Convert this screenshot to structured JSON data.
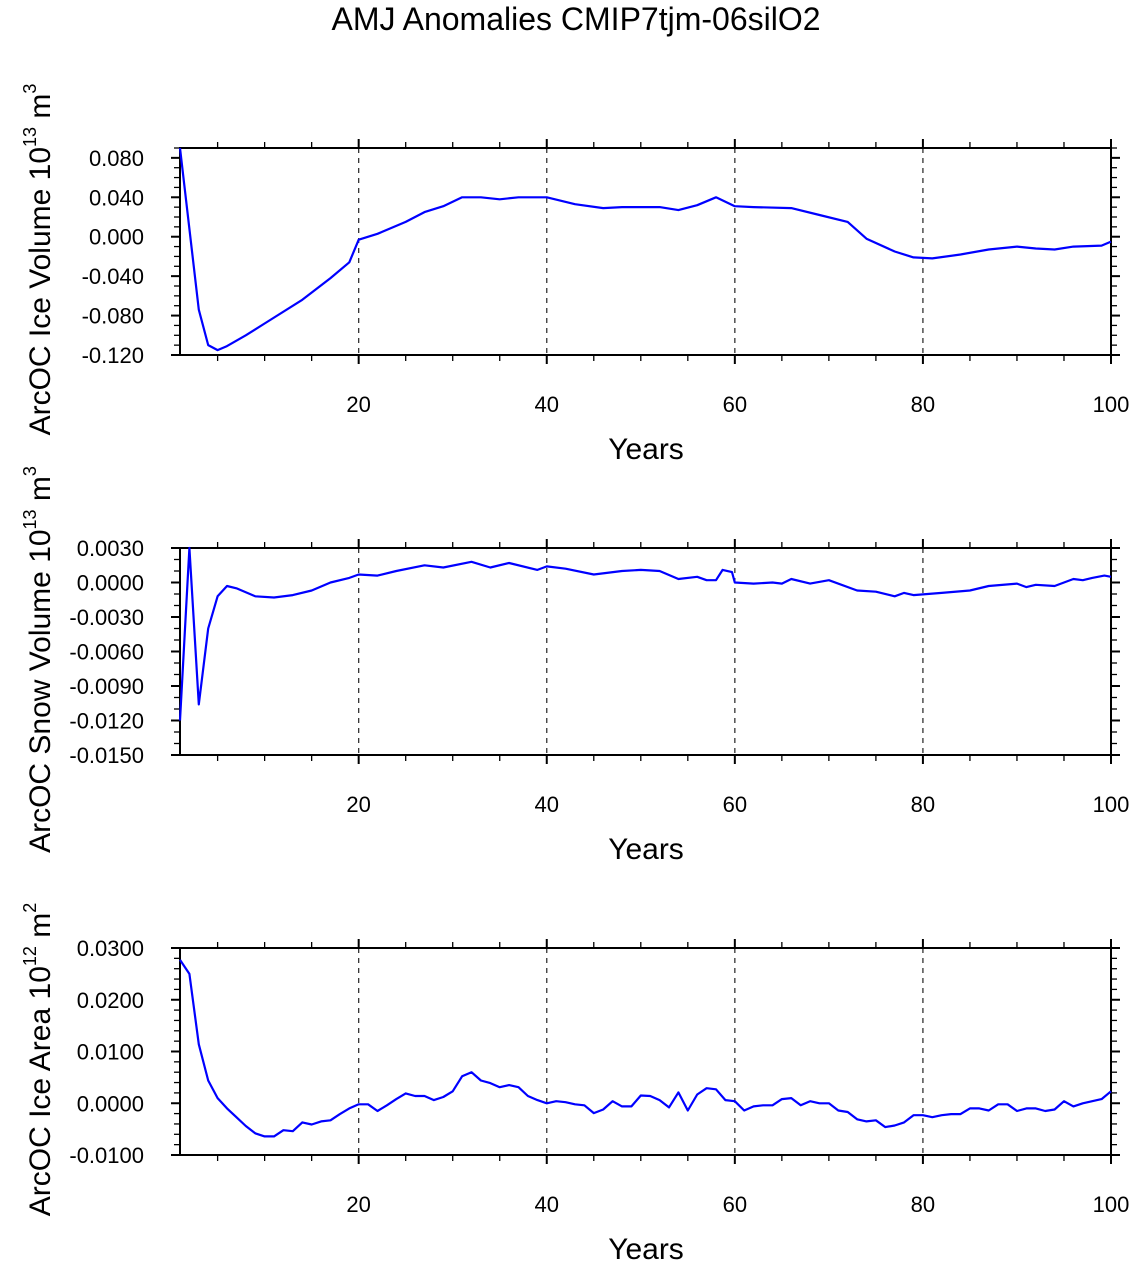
{
  "title": "AMJ Anomalies CMIP7tjm-06silO2",
  "line_color": "#0000ff",
  "chart_data": [
    {
      "type": "line",
      "ylabel": {
        "text": "ArcOC Ice Volume 10",
        "exponent": "13",
        "unit": " m",
        "unit_exp": "3"
      },
      "xlabel": "Years",
      "xlim": [
        1,
        100
      ],
      "ylim": [
        -0.12,
        0.09
      ],
      "xticks": [
        "20",
        "40",
        "60",
        "80",
        "100"
      ],
      "yticks": [
        "0.080",
        "0.040",
        "0.000",
        "-0.040",
        "-0.080",
        "-0.120"
      ],
      "ytick_values": [
        0.08,
        0.04,
        0,
        -0.04,
        -0.08,
        -0.12
      ],
      "y_minor_step": 0.01,
      "grid": "dashed vertical at x ticks",
      "x": [
        1,
        3,
        4,
        5,
        6,
        8,
        10,
        14,
        17,
        19,
        20,
        22,
        25,
        27,
        29,
        31,
        33,
        35,
        37,
        40,
        43,
        46,
        48,
        52,
        54,
        56,
        58,
        60,
        62,
        66,
        69,
        72,
        74,
        77,
        79,
        81,
        84,
        87,
        90,
        92,
        94,
        96,
        99,
        100
      ],
      "y": [
        0.09,
        -0.074,
        -0.11,
        -0.115,
        -0.111,
        -0.1,
        -0.088,
        -0.064,
        -0.042,
        -0.026,
        -0.003,
        0.003,
        0.015,
        0.025,
        0.031,
        0.04,
        0.04,
        0.038,
        0.04,
        0.04,
        0.033,
        0.029,
        0.03,
        0.03,
        0.027,
        0.032,
        0.04,
        0.031,
        0.03,
        0.029,
        0.022,
        0.015,
        -0.002,
        -0.015,
        -0.021,
        -0.022,
        -0.018,
        -0.013,
        -0.01,
        -0.012,
        -0.013,
        -0.01,
        -0.009,
        -0.005
      ]
    },
    {
      "type": "line",
      "ylabel": {
        "text": "ArcOC Snow Volume 10",
        "exponent": "13",
        "unit": " m",
        "unit_exp": "3"
      },
      "xlabel": "Years",
      "xlim": [
        1,
        100
      ],
      "ylim": [
        -0.015,
        0.003
      ],
      "xticks": [
        "20",
        "40",
        "60",
        "80",
        "100"
      ],
      "yticks": [
        "0.0030",
        "0.0000",
        "-0.0030",
        "-0.0060",
        "-0.0090",
        "-0.0120",
        "-0.0150"
      ],
      "ytick_values": [
        0.003,
        0,
        -0.003,
        -0.006,
        -0.009,
        -0.012,
        -0.015
      ],
      "y_minor_step": 0.001,
      "grid": "dashed vertical at x ticks",
      "x": [
        1,
        2,
        3,
        4,
        5,
        6,
        7,
        9,
        11,
        13,
        15,
        17,
        19,
        20,
        22,
        24,
        27,
        29,
        32,
        34,
        36,
        39,
        40,
        42,
        45,
        48,
        50,
        52,
        54,
        56,
        57,
        58,
        58.7,
        59.7,
        60,
        62,
        64,
        65,
        66,
        68,
        70,
        73,
        75,
        77,
        78,
        79,
        82,
        85,
        87,
        90,
        91,
        92,
        94,
        96,
        97,
        98,
        99.3,
        100
      ],
      "y": [
        -0.012,
        0.003,
        -0.0106,
        -0.004,
        -0.0012,
        -0.0003,
        -0.0005,
        -0.0012,
        -0.0013,
        -0.0011,
        -0.0007,
        0.0,
        0.0004,
        0.0007,
        0.0006,
        0.001,
        0.0015,
        0.0013,
        0.0018,
        0.0013,
        0.0017,
        0.0011,
        0.0014,
        0.0012,
        0.0007,
        0.001,
        0.0011,
        0.001,
        0.0003,
        0.0005,
        0.0002,
        0.0002,
        0.0011,
        0.0009,
        0.0,
        -0.0001,
        0.0,
        -0.0001,
        0.0003,
        -0.0001,
        0.0002,
        -0.0007,
        -0.0008,
        -0.0012,
        -0.0009,
        -0.0011,
        -0.0009,
        -0.0007,
        -0.0003,
        -0.0001,
        -0.0004,
        -0.0002,
        -0.0003,
        0.0003,
        0.0002,
        0.0004,
        0.0006,
        0.0005
      ]
    },
    {
      "type": "line",
      "ylabel": {
        "text": "ArcOC Ice Area 10",
        "exponent": "12",
        "unit": " m",
        "unit_exp": "2"
      },
      "xlabel": "Years",
      "xlim": [
        1,
        100
      ],
      "ylim": [
        -0.01,
        0.03
      ],
      "xticks": [
        "20",
        "40",
        "60",
        "80",
        "100"
      ],
      "yticks": [
        "0.0300",
        "0.0200",
        "0.0100",
        "0.0000",
        "-0.0100"
      ],
      "ytick_values": [
        0.03,
        0.02,
        0.01,
        0,
        -0.01
      ],
      "y_minor_step": 0.002,
      "grid": "dashed vertical at x ticks",
      "x": [
        1,
        2,
        3,
        4,
        5,
        6,
        7,
        8,
        9,
        10,
        11,
        12,
        13,
        14,
        15,
        16,
        17,
        18,
        19,
        20,
        21,
        22,
        23,
        24,
        25,
        26,
        27,
        28,
        29,
        30,
        31,
        32,
        33,
        34,
        35,
        36,
        37,
        38,
        39,
        40,
        41,
        42,
        43,
        44,
        45,
        46,
        47,
        48,
        49,
        50,
        51,
        52,
        53,
        54,
        55,
        56,
        57,
        58,
        59,
        60,
        61,
        62,
        63,
        64,
        65,
        66,
        67,
        68,
        69,
        70,
        71,
        72,
        73,
        74,
        75,
        76,
        77,
        78,
        79,
        80,
        81,
        82,
        83,
        84,
        85,
        86,
        87,
        88,
        89,
        90,
        91,
        92,
        93,
        94,
        95,
        96,
        97,
        98,
        99,
        100
      ],
      "y": [
        0.0277,
        0.025,
        0.0114,
        0.0044,
        0.001,
        -0.001,
        -0.0027,
        -0.0044,
        -0.0058,
        -0.0064,
        -0.0064,
        -0.0052,
        -0.0054,
        -0.0037,
        -0.0041,
        -0.0035,
        -0.0033,
        -0.0021,
        -0.001,
        -0.0002,
        -0.0002,
        -0.0015,
        -0.0004,
        0.0008,
        0.0019,
        0.0014,
        0.0014,
        0.0006,
        0.0012,
        0.0023,
        0.0052,
        0.006,
        0.0044,
        0.0039,
        0.0031,
        0.0035,
        0.0031,
        0.0014,
        0.0006,
        0.0,
        0.0004,
        0.0002,
        -0.0002,
        -0.0004,
        -0.0019,
        -0.0012,
        0.0004,
        -0.0006,
        -0.0006,
        0.0015,
        0.0014,
        0.0006,
        -0.0008,
        0.0021,
        -0.0014,
        0.0017,
        0.0029,
        0.0027,
        0.0006,
        0.0004,
        -0.0014,
        -0.0006,
        -0.0004,
        -0.0004,
        0.0008,
        0.001,
        -0.0004,
        0.0004,
        0.0,
        0.0,
        -0.0014,
        -0.0017,
        -0.0031,
        -0.0035,
        -0.0033,
        -0.0046,
        -0.0043,
        -0.0037,
        -0.0023,
        -0.0023,
        -0.0027,
        -0.0023,
        -0.0021,
        -0.0021,
        -0.001,
        -0.001,
        -0.0014,
        -0.0002,
        -0.0002,
        -0.0015,
        -0.001,
        -0.001,
        -0.0015,
        -0.0012,
        0.0004,
        -0.0006,
        0.0,
        0.0004,
        0.0008,
        0.0023
      ]
    }
  ]
}
